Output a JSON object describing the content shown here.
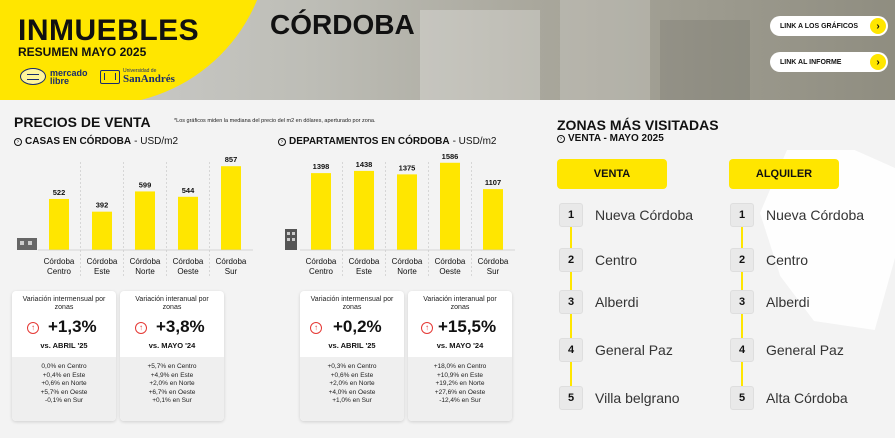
{
  "header": {
    "brand_title": "INMUEBLES",
    "brand_subtitle": "RESUMEN MAYO 2025",
    "logo_ml": "mercado libre",
    "logo_sa_small": "Universidad de",
    "logo_sa_big": "SanAndrés",
    "city": "CÓRDOBA",
    "link_charts": "LINK A LOS GRÁFICOS",
    "link_report": "LINK AL INFORME",
    "accent_color": "#ffe600"
  },
  "prices": {
    "title": "PRECIOS DE VENTA",
    "note": "*Los gráficos miden la mediana del precio del m2 en dólares, aperturado por zona."
  },
  "houses": {
    "subtitle_bold": "CASAS EN CÓRDOBA",
    "subtitle_rest": " - USD/m2",
    "card1": {
      "label": "Variación intermensual por zonas",
      "value": "+1,3%",
      "vs": "vs. ABRIL '25",
      "details": [
        "0,0% en Centro",
        "+0,4% en Este",
        "+0,6% en Norte",
        "+5,7% en Oeste",
        "-0,1% en Sur"
      ]
    },
    "card2": {
      "label": "Variación interanual por zonas",
      "value": "+3,8%",
      "vs": "vs. MAYO '24",
      "details": [
        "+5,7% en Centro",
        "+4,9% en Este",
        "+2,0% en Norte",
        "+6,7% en Oeste",
        "+0,1% en Sur"
      ]
    }
  },
  "apartments": {
    "subtitle_bold": "DEPARTAMENTOS EN CÓRDOBA",
    "subtitle_rest": " - USD/m2",
    "card1": {
      "label": "Variación intermensual por zonas",
      "value": "+0,2%",
      "vs": "vs. ABRIL '25",
      "details": [
        "+0,3% en Centro",
        "+0,6% en Este",
        "+2,0% en Norte",
        "+4,0% en Oeste",
        "+1,0% en Sur"
      ]
    },
    "card2": {
      "label": "Variación interanual por zonas",
      "value": "+15,5%",
      "vs": "vs. MAYO '24",
      "details": [
        "+18,0% en Centro",
        "+10,9% en Este",
        "+19,2% en Norte",
        "+27,6% en Oeste",
        "-12,4% en Sur"
      ]
    }
  },
  "chart_data": [
    {
      "type": "bar",
      "title": "CASAS EN CÓRDOBA - USD/m2",
      "categories": [
        "Córdoba Centro",
        "Córdoba Este",
        "Córdoba Norte",
        "Córdoba Oeste",
        "Córdoba Sur"
      ],
      "values": [
        522,
        392,
        599,
        544,
        857
      ],
      "ylim": [
        0,
        900
      ],
      "grid": false,
      "color": "#ffe600"
    },
    {
      "type": "bar",
      "title": "DEPARTAMENTOS EN CÓRDOBA - USD/m2",
      "categories": [
        "Córdoba Centro",
        "Córdoba Este",
        "Córdoba Norte",
        "Córdoba Oeste",
        "Córdoba Sur"
      ],
      "values": [
        1398,
        1438,
        1375,
        1586,
        1107
      ],
      "ylim": [
        0,
        1600
      ],
      "grid": false,
      "color": "#ffe600"
    }
  ],
  "zones": {
    "title": "ZONAS MÁS VISITADAS",
    "subtitle": "VENTA - MAYO 2025",
    "sale_header": "VENTA",
    "rent_header": "ALQUILER",
    "sale": [
      "Nueva Córdoba",
      "Centro",
      "Alberdi",
      "General Paz",
      "Villa belgrano"
    ],
    "rent": [
      "Nueva Córdoba",
      "Centro",
      "Alberdi",
      "General Paz",
      "Alta Córdoba"
    ],
    "ranks": [
      "1",
      "2",
      "3",
      "4",
      "5"
    ]
  }
}
